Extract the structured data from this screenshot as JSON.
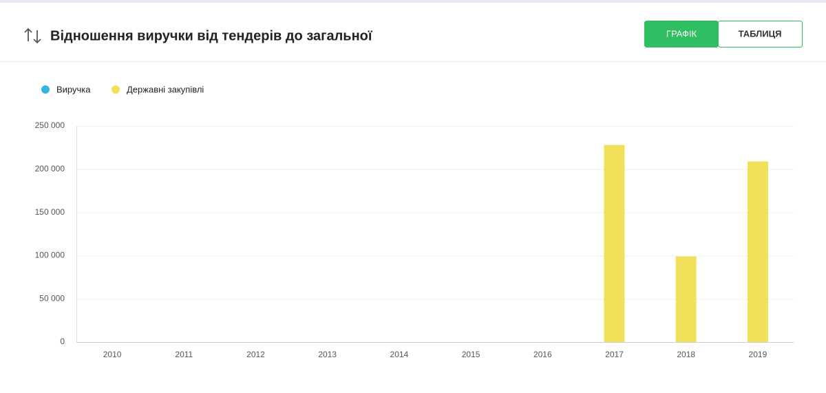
{
  "chart_data": {
    "type": "bar",
    "title": "Відношення виручки від тендерів до загальної",
    "categories": [
      "2010",
      "2011",
      "2012",
      "2013",
      "2014",
      "2015",
      "2016",
      "2017",
      "2018",
      "2019"
    ],
    "series": [
      {
        "name": "Виручка",
        "color": "#36b3ea",
        "values": [
          null,
          null,
          null,
          null,
          null,
          null,
          null,
          null,
          null,
          null
        ]
      },
      {
        "name": "Державні закупівлі",
        "color": "#f2e05a",
        "values": [
          null,
          null,
          null,
          null,
          null,
          null,
          null,
          228000,
          99000,
          209000
        ]
      }
    ],
    "ylim": [
      0,
      250000
    ],
    "yticks": [
      0,
      {
        "value": 50000,
        "label": "50 000"
      },
      {
        "value": 100000,
        "label": "100 000"
      },
      {
        "value": 150000,
        "label": "150 000"
      },
      {
        "value": 200000,
        "label": "200 000"
      },
      {
        "value": 250000,
        "label": "250 000"
      }
    ],
    "grid": true
  },
  "buttons": [
    "ГРАФІК",
    "ТАБЛИЦЯ"
  ]
}
